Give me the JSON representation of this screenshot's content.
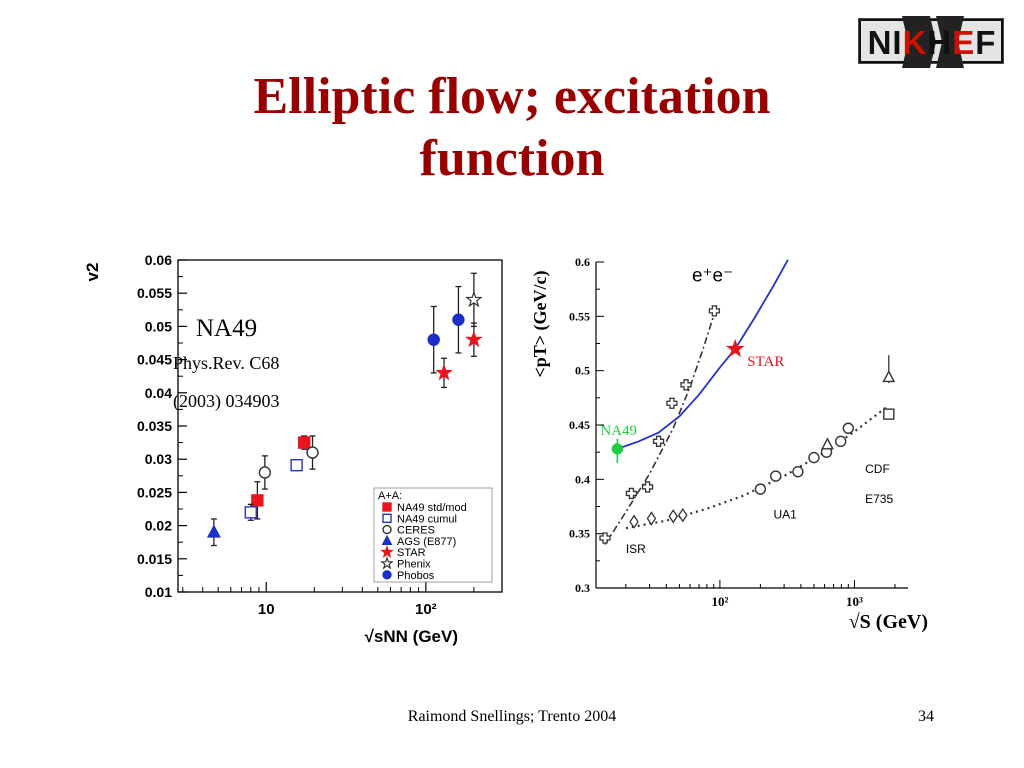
{
  "slide": {
    "title_line1": "Elliptic flow; excitation",
    "title_line2": "function",
    "logo_text": "NIKHEF",
    "footer_credit": "Raimond Snellings; Trento 2004",
    "page_number": "34"
  },
  "chart_data": [
    {
      "type": "scatter",
      "ylabel": "v2",
      "xlabel": "√sNN (GeV)",
      "xscale": "log",
      "xlim": [
        2.8,
        300
      ],
      "ylim": [
        0.01,
        0.06
      ],
      "yticks": [
        "0.01",
        "0.015",
        "0.02",
        "0.025",
        "0.03",
        "0.035",
        "0.04",
        "0.045",
        "0.05",
        "0.055",
        "0.06"
      ],
      "xticks": [
        {
          "value": 10,
          "label": "10"
        },
        {
          "value": 100,
          "label": "10²"
        }
      ],
      "annotations": [
        "NA49",
        "Phys.Rev. C68",
        "(2003) 034903"
      ],
      "legend_title": "A+A:",
      "legend_position": "bottom-right",
      "series": [
        {
          "name": "NA49 std/mod",
          "marker": "filled-square",
          "color": "#e8141e",
          "points": [
            {
              "x": 8.8,
              "y": 0.0238,
              "err": 0.0028
            },
            {
              "x": 17.3,
              "y": 0.0325,
              "err": 0.001
            }
          ]
        },
        {
          "name": "NA49 cumul",
          "marker": "open-square",
          "color": "#2a35b8",
          "points": [
            {
              "x": 8.0,
              "y": 0.022,
              "err": 0.0012
            },
            {
              "x": 15.5,
              "y": 0.0291,
              "err": 0.0006
            }
          ]
        },
        {
          "name": "CERES",
          "marker": "open-circle",
          "color": "#333333",
          "points": [
            {
              "x": 9.8,
              "y": 0.028,
              "err": 0.0025
            },
            {
              "x": 19.5,
              "y": 0.031,
              "err": 0.0025
            }
          ]
        },
        {
          "name": "AGS (E877)",
          "marker": "filled-triangle",
          "color": "#1a2fc8",
          "points": [
            {
              "x": 4.7,
              "y": 0.019,
              "err": 0.002
            }
          ]
        },
        {
          "name": "STAR",
          "marker": "filled-star",
          "color": "#e8141e",
          "points": [
            {
              "x": 130,
              "y": 0.043,
              "err": 0.0022
            },
            {
              "x": 200,
              "y": 0.048,
              "err": 0.0025
            }
          ]
        },
        {
          "name": "Phenix",
          "marker": "open-star",
          "color": "#333333",
          "points": [
            {
              "x": 200,
              "y": 0.054,
              "err": 0.004
            }
          ]
        },
        {
          "name": "Phobos",
          "marker": "filled-circle",
          "color": "#1a2fc8",
          "points": [
            {
              "x": 112,
              "y": 0.048,
              "err": 0.005
            },
            {
              "x": 160,
              "y": 0.051,
              "err": 0.005
            }
          ]
        }
      ]
    },
    {
      "type": "scatter",
      "ylabel": "<pT> (GeV/c)",
      "xlabel": "√S (GeV)",
      "xscale": "log",
      "xlim": [
        12,
        2500
      ],
      "ylim": [
        0.3,
        0.6
      ],
      "yticks": [
        "0.3",
        "0.35",
        "0.4",
        "0.45",
        "0.5",
        "0.55",
        "0.6"
      ],
      "xticks": [
        {
          "value": 100,
          "label": "10²"
        },
        {
          "value": 1000,
          "label": "10³"
        }
      ],
      "labels": {
        "ee": "e⁺e⁻",
        "isr": "ISR",
        "ua1": "UA1",
        "cdf": "CDF",
        "e735": "E735",
        "na49": "NA49",
        "star": "STAR"
      },
      "series": [
        {
          "name": "e+e-",
          "marker": "open-cross",
          "color": "#333333",
          "points": [
            {
              "x": 14,
              "y": 0.346
            },
            {
              "x": 22,
              "y": 0.387
            },
            {
              "x": 29,
              "y": 0.393
            },
            {
              "x": 35,
              "y": 0.435
            },
            {
              "x": 44,
              "y": 0.47
            },
            {
              "x": 56,
              "y": 0.487
            },
            {
              "x": 91,
              "y": 0.555
            }
          ]
        },
        {
          "name": "ISR",
          "marker": "open-diamond",
          "color": "#333333",
          "points": [
            {
              "x": 23,
              "y": 0.361
            },
            {
              "x": 31,
              "y": 0.364
            },
            {
              "x": 45,
              "y": 0.366
            },
            {
              "x": 53,
              "y": 0.367
            }
          ]
        },
        {
          "name": "UA1",
          "marker": "open-circle",
          "color": "#333333",
          "points": [
            {
              "x": 200,
              "y": 0.391
            },
            {
              "x": 260,
              "y": 0.403
            },
            {
              "x": 380,
              "y": 0.407
            },
            {
              "x": 500,
              "y": 0.42
            },
            {
              "x": 620,
              "y": 0.425
            },
            {
              "x": 790,
              "y": 0.435
            },
            {
              "x": 900,
              "y": 0.447
            }
          ]
        },
        {
          "name": "CDF",
          "marker": "open-triangle",
          "color": "#333333",
          "points": [
            {
              "x": 630,
              "y": 0.432
            },
            {
              "x": 1800,
              "y": 0.494
            }
          ]
        },
        {
          "name": "E735",
          "marker": "open-square",
          "color": "#333333",
          "points": [
            {
              "x": 1800,
              "y": 0.46
            }
          ]
        },
        {
          "name": "NA49",
          "marker": "filled-circle",
          "color": "#22cc44",
          "points": [
            {
              "x": 17.3,
              "y": 0.428
            }
          ]
        },
        {
          "name": "STAR",
          "marker": "filled-star",
          "color": "#e8141e",
          "points": [
            {
              "x": 130,
              "y": 0.52
            }
          ]
        }
      ],
      "curves": [
        {
          "name": "e+e- fit",
          "style": "dash-dot",
          "color": "#333333",
          "points": [
            {
              "x": 14,
              "y": 0.34
            },
            {
              "x": 20,
              "y": 0.37
            },
            {
              "x": 30,
              "y": 0.405
            },
            {
              "x": 45,
              "y": 0.447
            },
            {
              "x": 60,
              "y": 0.485
            },
            {
              "x": 75,
              "y": 0.52
            },
            {
              "x": 95,
              "y": 0.56
            }
          ]
        },
        {
          "name": "pp fit",
          "style": "dotted",
          "color": "#333333",
          "points": [
            {
              "x": 20,
              "y": 0.355
            },
            {
              "x": 40,
              "y": 0.362
            },
            {
              "x": 80,
              "y": 0.373
            },
            {
              "x": 150,
              "y": 0.385
            },
            {
              "x": 300,
              "y": 0.403
            },
            {
              "x": 600,
              "y": 0.425
            },
            {
              "x": 1000,
              "y": 0.444
            },
            {
              "x": 1800,
              "y": 0.468
            }
          ]
        },
        {
          "name": "NA49-STAR fit",
          "style": "solid",
          "color": "#2233cc",
          "points": [
            {
              "x": 17.3,
              "y": 0.428
            },
            {
              "x": 25,
              "y": 0.435
            },
            {
              "x": 35,
              "y": 0.443
            },
            {
              "x": 50,
              "y": 0.458
            },
            {
              "x": 70,
              "y": 0.478
            },
            {
              "x": 100,
              "y": 0.503
            },
            {
              "x": 130,
              "y": 0.52
            },
            {
              "x": 180,
              "y": 0.548
            },
            {
              "x": 250,
              "y": 0.578
            },
            {
              "x": 320,
              "y": 0.602
            }
          ]
        }
      ]
    }
  ]
}
